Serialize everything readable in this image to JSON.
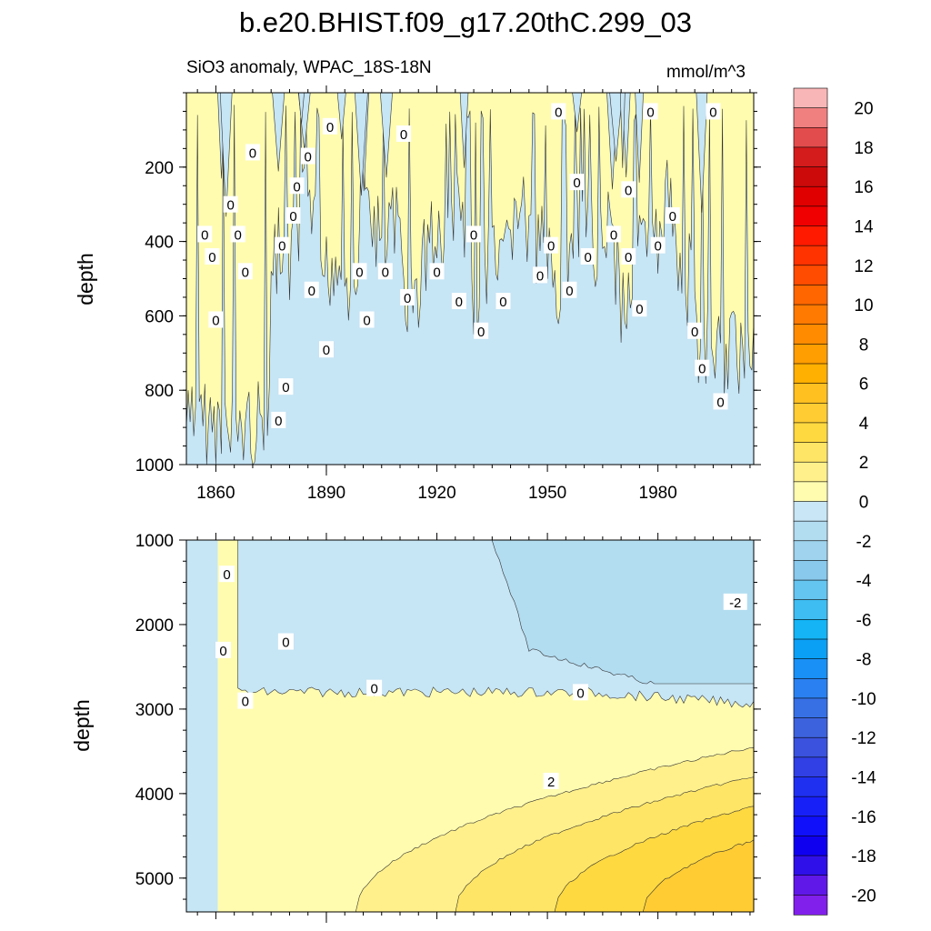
{
  "chart_data": {
    "type": "heatmap",
    "title": "b.e20.BHIST.f09_g17.20thC.299_03",
    "subtitle": "SiO3 anomaly, WPAC_18S-18N",
    "units": "mmol/m^3",
    "x_ticks": [
      1860,
      1890,
      1920,
      1950,
      1980
    ],
    "xlim": [
      1852,
      2006
    ],
    "panels": [
      {
        "name": "upper",
        "ylabel": "depth",
        "ylim": [
          0,
          1000
        ],
        "y_ticks": [
          200,
          400,
          600,
          800,
          1000
        ],
        "description_fields": {
          "fill_band_positive": "0 to 1",
          "fill_band_negative": "-1 to 0"
        },
        "contour_labels": [
          {
            "text": "0",
            "x": 1857,
            "y": 380
          },
          {
            "text": "0",
            "x": 1859,
            "y": 440
          },
          {
            "text": "0",
            "x": 1860,
            "y": 610
          },
          {
            "text": "0",
            "x": 1864,
            "y": 300
          },
          {
            "text": "0",
            "x": 1866,
            "y": 380
          },
          {
            "text": "0",
            "x": 1868,
            "y": 480
          },
          {
            "text": "0",
            "x": 1870,
            "y": 160
          },
          {
            "text": "0",
            "x": 1877,
            "y": 880
          },
          {
            "text": "0",
            "x": 1878,
            "y": 410
          },
          {
            "text": "0",
            "x": 1879,
            "y": 790
          },
          {
            "text": "0",
            "x": 1881,
            "y": 330
          },
          {
            "text": "0",
            "x": 1882,
            "y": 250
          },
          {
            "text": "0",
            "x": 1885,
            "y": 170
          },
          {
            "text": "0",
            "x": 1886,
            "y": 530
          },
          {
            "text": "0",
            "x": 1890,
            "y": 690
          },
          {
            "text": "0",
            "x": 1891,
            "y": 90
          },
          {
            "text": "0",
            "x": 1899,
            "y": 480
          },
          {
            "text": "0",
            "x": 1901,
            "y": 610
          },
          {
            "text": "0",
            "x": 1906,
            "y": 480
          },
          {
            "text": "0",
            "x": 1911,
            "y": 110
          },
          {
            "text": "0",
            "x": 1912,
            "y": 550
          },
          {
            "text": "0",
            "x": 1920,
            "y": 480
          },
          {
            "text": "0",
            "x": 1926,
            "y": 560
          },
          {
            "text": "0",
            "x": 1930,
            "y": 380
          },
          {
            "text": "0",
            "x": 1932,
            "y": 640
          },
          {
            "text": "0",
            "x": 1938,
            "y": 560
          },
          {
            "text": "0",
            "x": 1948,
            "y": 490
          },
          {
            "text": "0",
            "x": 1951,
            "y": 410
          },
          {
            "text": "0",
            "x": 1953,
            "y": 50
          },
          {
            "text": "0",
            "x": 1956,
            "y": 530
          },
          {
            "text": "0",
            "x": 1958,
            "y": 240
          },
          {
            "text": "0",
            "x": 1961,
            "y": 440
          },
          {
            "text": "0",
            "x": 1968,
            "y": 380
          },
          {
            "text": "0",
            "x": 1972,
            "y": 260
          },
          {
            "text": "0",
            "x": 1972,
            "y": 440
          },
          {
            "text": "0",
            "x": 1975,
            "y": 580
          },
          {
            "text": "0",
            "x": 1978,
            "y": 50
          },
          {
            "text": "0",
            "x": 1980,
            "y": 410
          },
          {
            "text": "0",
            "x": 1984,
            "y": 330
          },
          {
            "text": "0",
            "x": 1990,
            "y": 640
          },
          {
            "text": "0",
            "x": 1992,
            "y": 740
          },
          {
            "text": "0",
            "x": 1995,
            "y": 50
          },
          {
            "text": "0",
            "x": 1997,
            "y": 830
          }
        ]
      },
      {
        "name": "lower",
        "ylabel": "depth",
        "ylim": [
          1000,
          5400
        ],
        "y_ticks": [
          1000,
          2000,
          3000,
          4000,
          5000
        ],
        "contour_labels": [
          {
            "text": "0",
            "x": 1863,
            "y": 1400
          },
          {
            "text": "0",
            "x": 1862,
            "y": 2300
          },
          {
            "text": "0",
            "x": 1868,
            "y": 2900
          },
          {
            "text": "0",
            "x": 1879,
            "y": 2200
          },
          {
            "text": "0",
            "x": 1903,
            "y": 2750
          },
          {
            "text": "0",
            "x": 1959,
            "y": 2800
          },
          {
            "text": "2",
            "x": 1951,
            "y": 3850
          },
          {
            "text": "-2",
            "x": 2001,
            "y": 1730
          }
        ],
        "regions_note": "0 contour near 2800-2950 m; values increase to ~3-4 at depth by 2000s; negatives to ~-2 in 1000-2600 m late period"
      }
    ],
    "colorbar": {
      "labels": [
        "20",
        "18",
        "16",
        "14",
        "12",
        "10",
        "8",
        "6",
        "4",
        "2",
        "0",
        "-2",
        "-4",
        "-6",
        "-8",
        "-10",
        "-12",
        "-14",
        "-16",
        "-18",
        "-20"
      ],
      "levels": [
        -21,
        -20,
        -19,
        -18,
        -17,
        -16,
        -15,
        -14,
        -13,
        -12,
        -11,
        -10,
        -9,
        -8,
        -7,
        -6,
        -5,
        -4,
        -3,
        -2,
        -1,
        0,
        1,
        2,
        3,
        4,
        5,
        6,
        7,
        8,
        9,
        10,
        11,
        12,
        13,
        14,
        15,
        16,
        17,
        18,
        19,
        20,
        21
      ],
      "colors_top_to_bottom": [
        "#f9b6b6",
        "#f08080",
        "#e34c4c",
        "#d41c1c",
        "#cc0a0a",
        "#e00000",
        "#f00000",
        "#ff1a00",
        "#ff3300",
        "#ff4c00",
        "#ff6600",
        "#ff7a00",
        "#ff8c00",
        "#ff9e00",
        "#ffb000",
        "#ffc020",
        "#ffcc33",
        "#ffd940",
        "#ffe566",
        "#fff08c",
        "#fffcb0",
        "#c8e6f5",
        "#b2dcf0",
        "#9fd3ee",
        "#88c9ec",
        "#64c5f0",
        "#3ebdf2",
        "#14b4f5",
        "#0aa0f5",
        "#1990f5",
        "#2a80f0",
        "#3770e5",
        "#3d62dd",
        "#3a52dd",
        "#3040e5",
        "#2030f0",
        "#1820f8",
        "#1010fa",
        "#1000f0",
        "#3010e8",
        "#6018e8",
        "#8020ea"
      ]
    }
  }
}
